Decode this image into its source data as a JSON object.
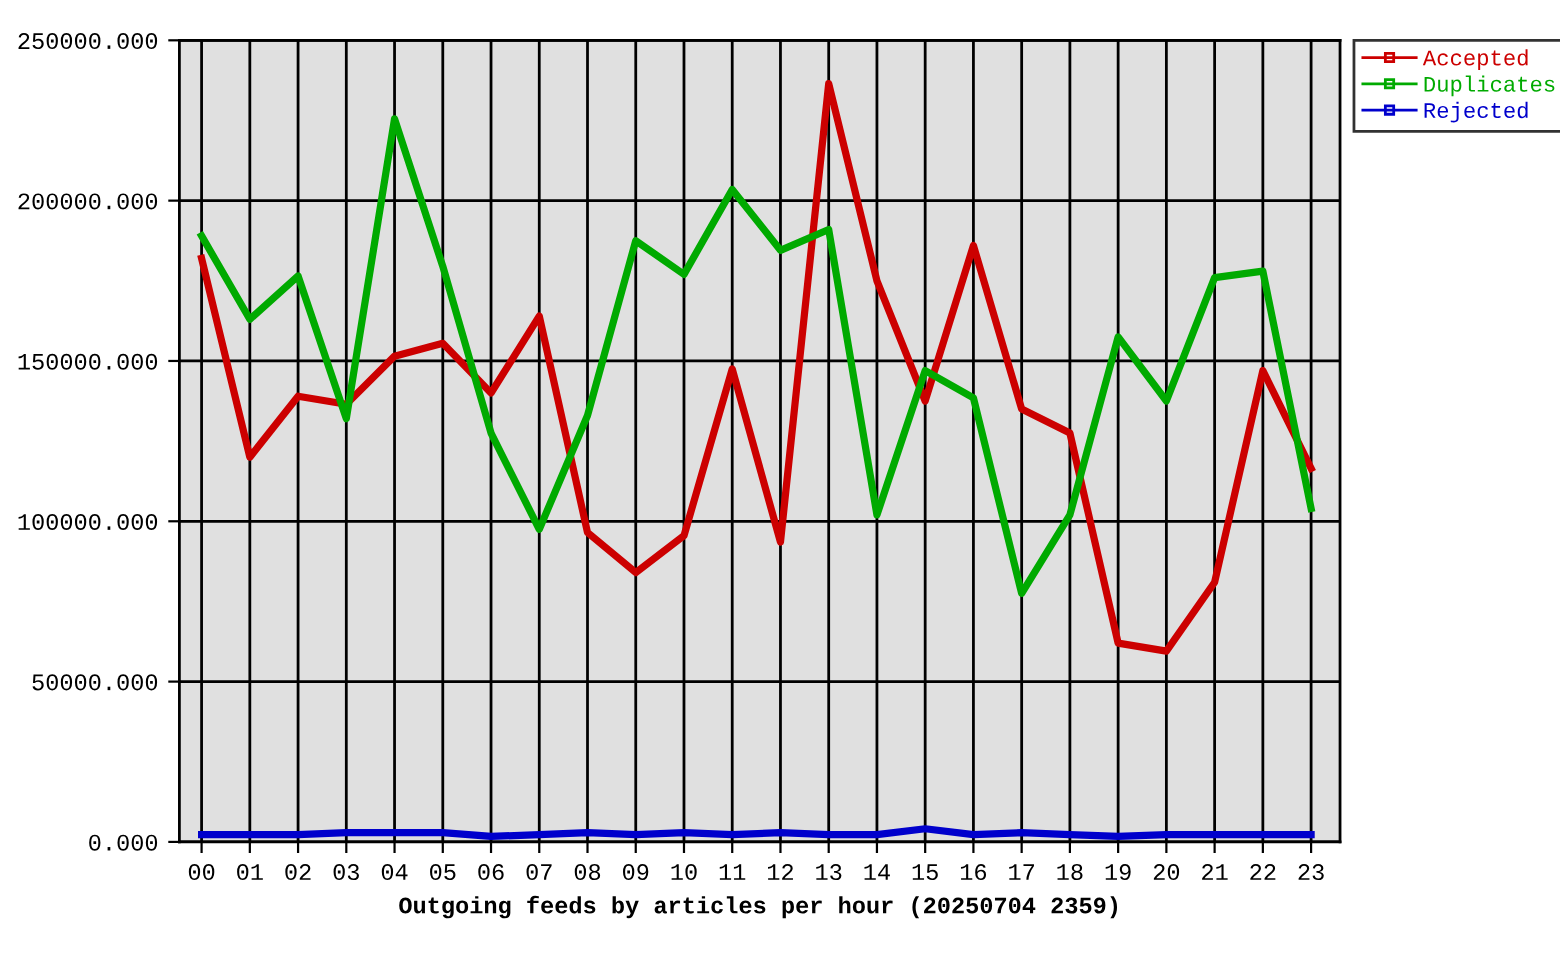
{
  "chart_data": {
    "type": "line",
    "xlabel": "Outgoing feeds by articles per hour (20250704 2359)",
    "categories": [
      "00",
      "01",
      "02",
      "03",
      "04",
      "05",
      "06",
      "07",
      "08",
      "09",
      "10",
      "11",
      "12",
      "13",
      "14",
      "15",
      "16",
      "17",
      "18",
      "19",
      "20",
      "21",
      "22",
      "23"
    ],
    "series": [
      {
        "name": "Accepted",
        "color": "#cc0000",
        "values": [
          182000,
          120000,
          139000,
          136500,
          151500,
          155500,
          140000,
          164000,
          96500,
          84000,
          95500,
          147500,
          93500,
          236500,
          175000,
          137500,
          186000,
          135000,
          127500,
          62000,
          59500,
          81000,
          147000,
          116500
        ]
      },
      {
        "name": "Duplicates",
        "color": "#00aa00",
        "values": [
          189000,
          163000,
          176500,
          132000,
          225500,
          179500,
          127500,
          97500,
          133000,
          187500,
          177000,
          203500,
          184500,
          191000,
          102000,
          147000,
          138500,
          77500,
          102000,
          157500,
          137500,
          176000,
          178000,
          104000
        ]
      },
      {
        "name": "Rejected",
        "color": "#0000cc",
        "values": [
          2300,
          2300,
          2300,
          2900,
          2900,
          2900,
          1700,
          2300,
          2900,
          2300,
          2900,
          2300,
          2900,
          2300,
          2300,
          4100,
          2300,
          2900,
          2300,
          1700,
          2300,
          2300,
          2300,
          2300
        ]
      }
    ],
    "ylim": [
      0,
      250000
    ],
    "yticks": [
      {
        "value": 0,
        "label": "0.000"
      },
      {
        "value": 50000,
        "label": "50000.000"
      },
      {
        "value": 100000,
        "label": "100000.000"
      },
      {
        "value": 150000,
        "label": "150000.000"
      },
      {
        "value": 200000,
        "label": "200000.000"
      },
      {
        "value": 250000,
        "label": "250000.000"
      }
    ],
    "grid": true,
    "legend": "top right",
    "line_style": "solid"
  }
}
